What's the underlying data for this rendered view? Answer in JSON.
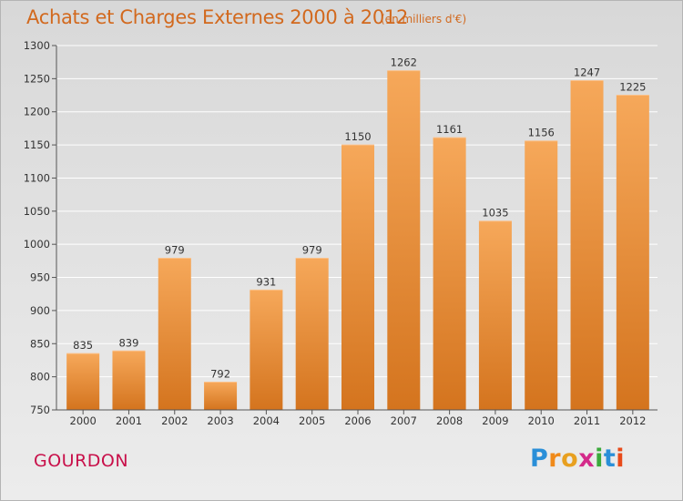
{
  "header": {
    "title": "Achats et Charges Externes 2000 à 2012",
    "subtitle": "(en milliers d'€)"
  },
  "footer": {
    "city": "GOURDON",
    "logo_letters": [
      "P",
      "r",
      "o",
      "x",
      "i",
      "t",
      "i"
    ]
  },
  "colors": {
    "bar_top": "#f6a85a",
    "bar_bottom": "#d4741e",
    "title": "#d2691e",
    "city": "#c8104a"
  },
  "chart_data": {
    "type": "bar",
    "title": "Achats et Charges Externes 2000 à 2012",
    "subtitle": "(en milliers d'€)",
    "categories": [
      "2000",
      "2001",
      "2002",
      "2003",
      "2004",
      "2005",
      "2006",
      "2007",
      "2008",
      "2009",
      "2010",
      "2011",
      "2012"
    ],
    "values": [
      835,
      839,
      979,
      792,
      931,
      979,
      1150,
      1262,
      1161,
      1035,
      1156,
      1247,
      1225
    ],
    "ylim": [
      750,
      1300
    ],
    "yticks": [
      750,
      800,
      850,
      900,
      950,
      1000,
      1050,
      1100,
      1150,
      1200,
      1250,
      1300
    ],
    "grid": true,
    "legend": "none"
  }
}
